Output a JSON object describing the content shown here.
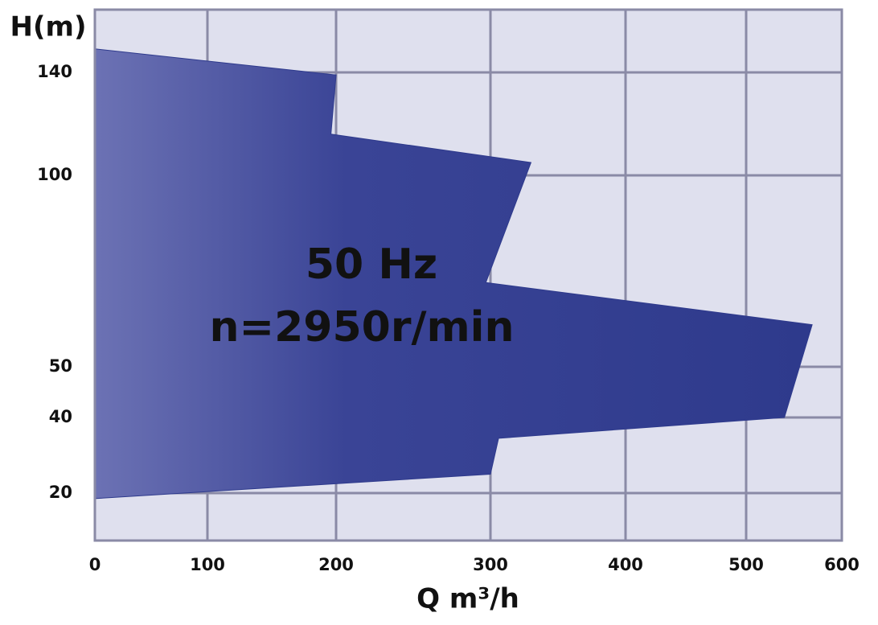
{
  "chart_data": {
    "type": "area",
    "annotations": [
      "50 Hz",
      "n=2950r/min"
    ],
    "x_label": "Q m³/h",
    "y_label": "H(m)",
    "x": [
      0,
      200,
      196,
      330,
      297,
      569,
      540,
      306,
      300,
      0
    ],
    "values": [
      149,
      139,
      116,
      105,
      72,
      61,
      40,
      34.5,
      25,
      18.5
    ],
    "color": "#2e3a8c",
    "xlim": [
      0,
      600
    ],
    "xticks": [
      0,
      100,
      200,
      300,
      400,
      500,
      600
    ],
    "ylim": [
      7,
      164
    ],
    "yticks": [
      20,
      40,
      50,
      100,
      140
    ],
    "grid": true
  }
}
